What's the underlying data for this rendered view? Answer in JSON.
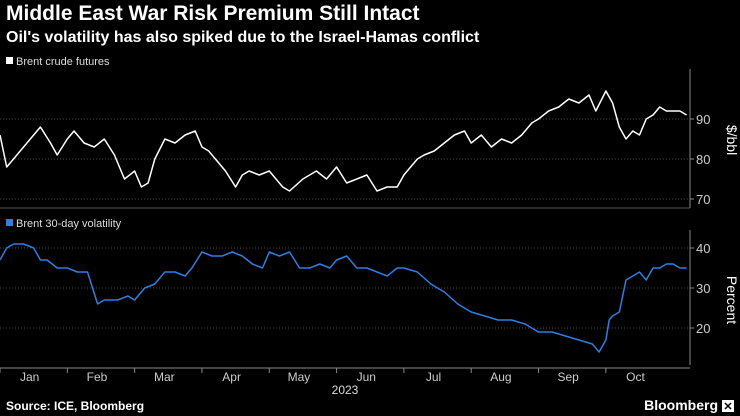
{
  "title": "Middle East War Risk Premium Still Intact",
  "subtitle": "Oil's volatility has also spiked due to the Israel-Hamas conflict",
  "source": "Source: ICE, Bloomberg",
  "brand": "Bloomberg",
  "colors": {
    "background": "#000000",
    "brent_line": "#ffffff",
    "volatility_line": "#2f7fe0",
    "grid": "#4a4a4a",
    "axis_text": "#cccccc"
  },
  "chart_data": [
    {
      "type": "line",
      "title": "Brent crude futures",
      "legend": "Brent crude futures",
      "ylabel": "$/bbl",
      "ylim": [
        68,
        102
      ],
      "yticks": [
        70,
        80,
        90
      ],
      "xlim": [
        0,
        10.25
      ],
      "series": [
        {
          "name": "Brent crude futures",
          "x": [
            0,
            0.1,
            0.2,
            0.3,
            0.45,
            0.6,
            0.75,
            0.85,
            1.0,
            1.1,
            1.25,
            1.4,
            1.55,
            1.7,
            1.85,
            2.0,
            2.1,
            2.2,
            2.3,
            2.45,
            2.6,
            2.75,
            2.9,
            3.0,
            3.1,
            3.2,
            3.35,
            3.5,
            3.6,
            3.7,
            3.85,
            4.0,
            4.1,
            4.2,
            4.3,
            4.5,
            4.7,
            4.85,
            5.0,
            5.15,
            5.3,
            5.45,
            5.6,
            5.75,
            5.9,
            6.0,
            6.1,
            6.2,
            6.3,
            6.45,
            6.6,
            6.75,
            6.9,
            7.0,
            7.15,
            7.3,
            7.45,
            7.6,
            7.75,
            7.9,
            8.0,
            8.15,
            8.3,
            8.45,
            8.6,
            8.75,
            8.85,
            9.0,
            9.1,
            9.2,
            9.3,
            9.4,
            9.5,
            9.6,
            9.7,
            9.8,
            9.9,
            10.0,
            10.1,
            10.2
          ],
          "values": [
            86,
            78,
            80,
            82,
            85,
            88,
            84,
            81,
            85,
            87,
            84,
            83,
            85,
            81,
            75,
            77,
            73,
            74,
            80,
            85,
            84,
            86,
            87,
            83,
            82,
            80,
            77,
            73,
            76,
            77,
            76,
            77,
            75,
            73,
            72,
            75,
            77,
            75,
            78,
            74,
            75,
            76,
            72,
            73,
            73,
            76,
            78,
            80,
            81,
            82,
            84,
            86,
            87,
            84,
            86,
            83,
            85,
            84,
            86,
            89,
            90,
            92,
            93,
            95,
            94,
            96,
            92,
            97,
            94,
            88,
            85,
            87,
            86,
            90,
            91,
            93,
            92,
            92,
            92,
            91
          ]
        }
      ]
    },
    {
      "type": "line",
      "title": "Brent 30-day volatility",
      "legend": "Brent 30-day volatility",
      "ylabel": "Percent",
      "ylim": [
        11,
        44
      ],
      "yticks": [
        20,
        30,
        40
      ],
      "xlim": [
        0,
        10.25
      ],
      "series": [
        {
          "name": "Brent 30-day volatility",
          "x": [
            0,
            0.1,
            0.2,
            0.35,
            0.5,
            0.6,
            0.7,
            0.85,
            1.0,
            1.15,
            1.3,
            1.45,
            1.55,
            1.65,
            1.75,
            1.9,
            2.0,
            2.15,
            2.3,
            2.45,
            2.6,
            2.75,
            2.85,
            3.0,
            3.15,
            3.3,
            3.45,
            3.6,
            3.75,
            3.9,
            4.0,
            4.15,
            4.3,
            4.45,
            4.6,
            4.75,
            4.9,
            5.0,
            5.15,
            5.3,
            5.45,
            5.6,
            5.75,
            5.9,
            6.0,
            6.2,
            6.4,
            6.6,
            6.8,
            7.0,
            7.2,
            7.4,
            7.6,
            7.8,
            8.0,
            8.2,
            8.4,
            8.6,
            8.8,
            8.9,
            9.0,
            9.05,
            9.1,
            9.2,
            9.3,
            9.4,
            9.5,
            9.6,
            9.7,
            9.8,
            9.9,
            10.0,
            10.1,
            10.2
          ],
          "values": [
            37,
            40,
            41,
            41,
            40,
            37,
            37,
            35,
            35,
            34,
            34,
            26,
            27,
            27,
            27,
            28,
            27,
            30,
            31,
            34,
            34,
            33,
            35,
            39,
            38,
            38,
            39,
            38,
            36,
            35,
            39,
            38,
            39,
            35,
            35,
            36,
            35,
            37,
            38,
            35,
            35,
            34,
            33,
            35,
            35,
            34,
            31,
            29,
            26,
            24,
            23,
            22,
            22,
            21,
            19,
            19,
            18,
            17,
            16,
            14,
            17,
            22,
            23,
            24,
            32,
            33,
            34,
            32,
            35,
            35,
            36,
            36,
            35,
            35
          ]
        }
      ]
    }
  ],
  "x_axis": {
    "months": [
      "Jan",
      "Feb",
      "Mar",
      "Apr",
      "May",
      "Jun",
      "Jul",
      "Aug",
      "Sep",
      "Oct"
    ],
    "year": "2023"
  }
}
